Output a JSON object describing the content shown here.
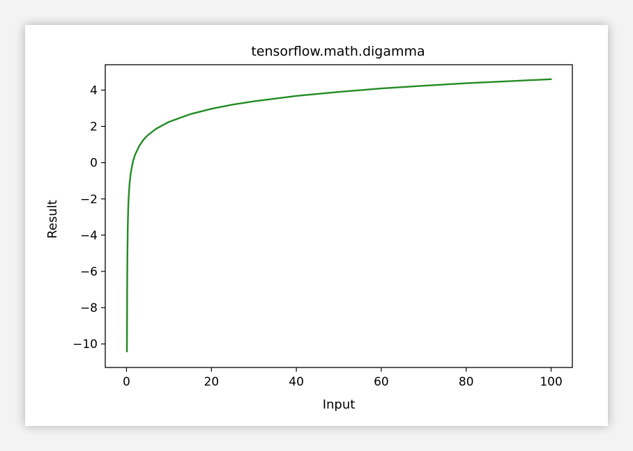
{
  "chart_data": {
    "type": "line",
    "title": "tensorflow.math.digamma",
    "xlabel": "Input",
    "ylabel": "Result",
    "xlim": [
      -5,
      105
    ],
    "ylim": [
      -11.3,
      5.4
    ],
    "xticks": [
      0,
      20,
      40,
      60,
      80,
      100
    ],
    "xtick_labels": [
      "0",
      "20",
      "40",
      "60",
      "80",
      "100"
    ],
    "yticks": [
      4,
      2,
      0,
      -2,
      -4,
      -6,
      -8,
      -10
    ],
    "ytick_labels": [
      "4",
      "2",
      "0",
      "−2",
      "−4",
      "−6",
      "−8",
      "−10"
    ],
    "grid": false,
    "series": [
      {
        "color": "#228B22",
        "x": [
          0.1,
          0.15,
          0.2,
          0.3,
          0.4,
          0.5,
          0.7,
          1,
          1.5,
          2,
          3,
          4,
          5,
          7,
          10,
          15,
          20,
          25,
          30,
          40,
          50,
          60,
          70,
          80,
          90,
          100
        ],
        "y": [
          -10.42,
          -7.06,
          -5.29,
          -3.5,
          -2.56,
          -1.96,
          -1.22,
          -0.58,
          0.04,
          0.42,
          0.92,
          1.26,
          1.51,
          1.87,
          2.25,
          2.67,
          2.97,
          3.2,
          3.38,
          3.68,
          3.9,
          4.09,
          4.24,
          4.38,
          4.49,
          4.6
        ]
      }
    ]
  }
}
